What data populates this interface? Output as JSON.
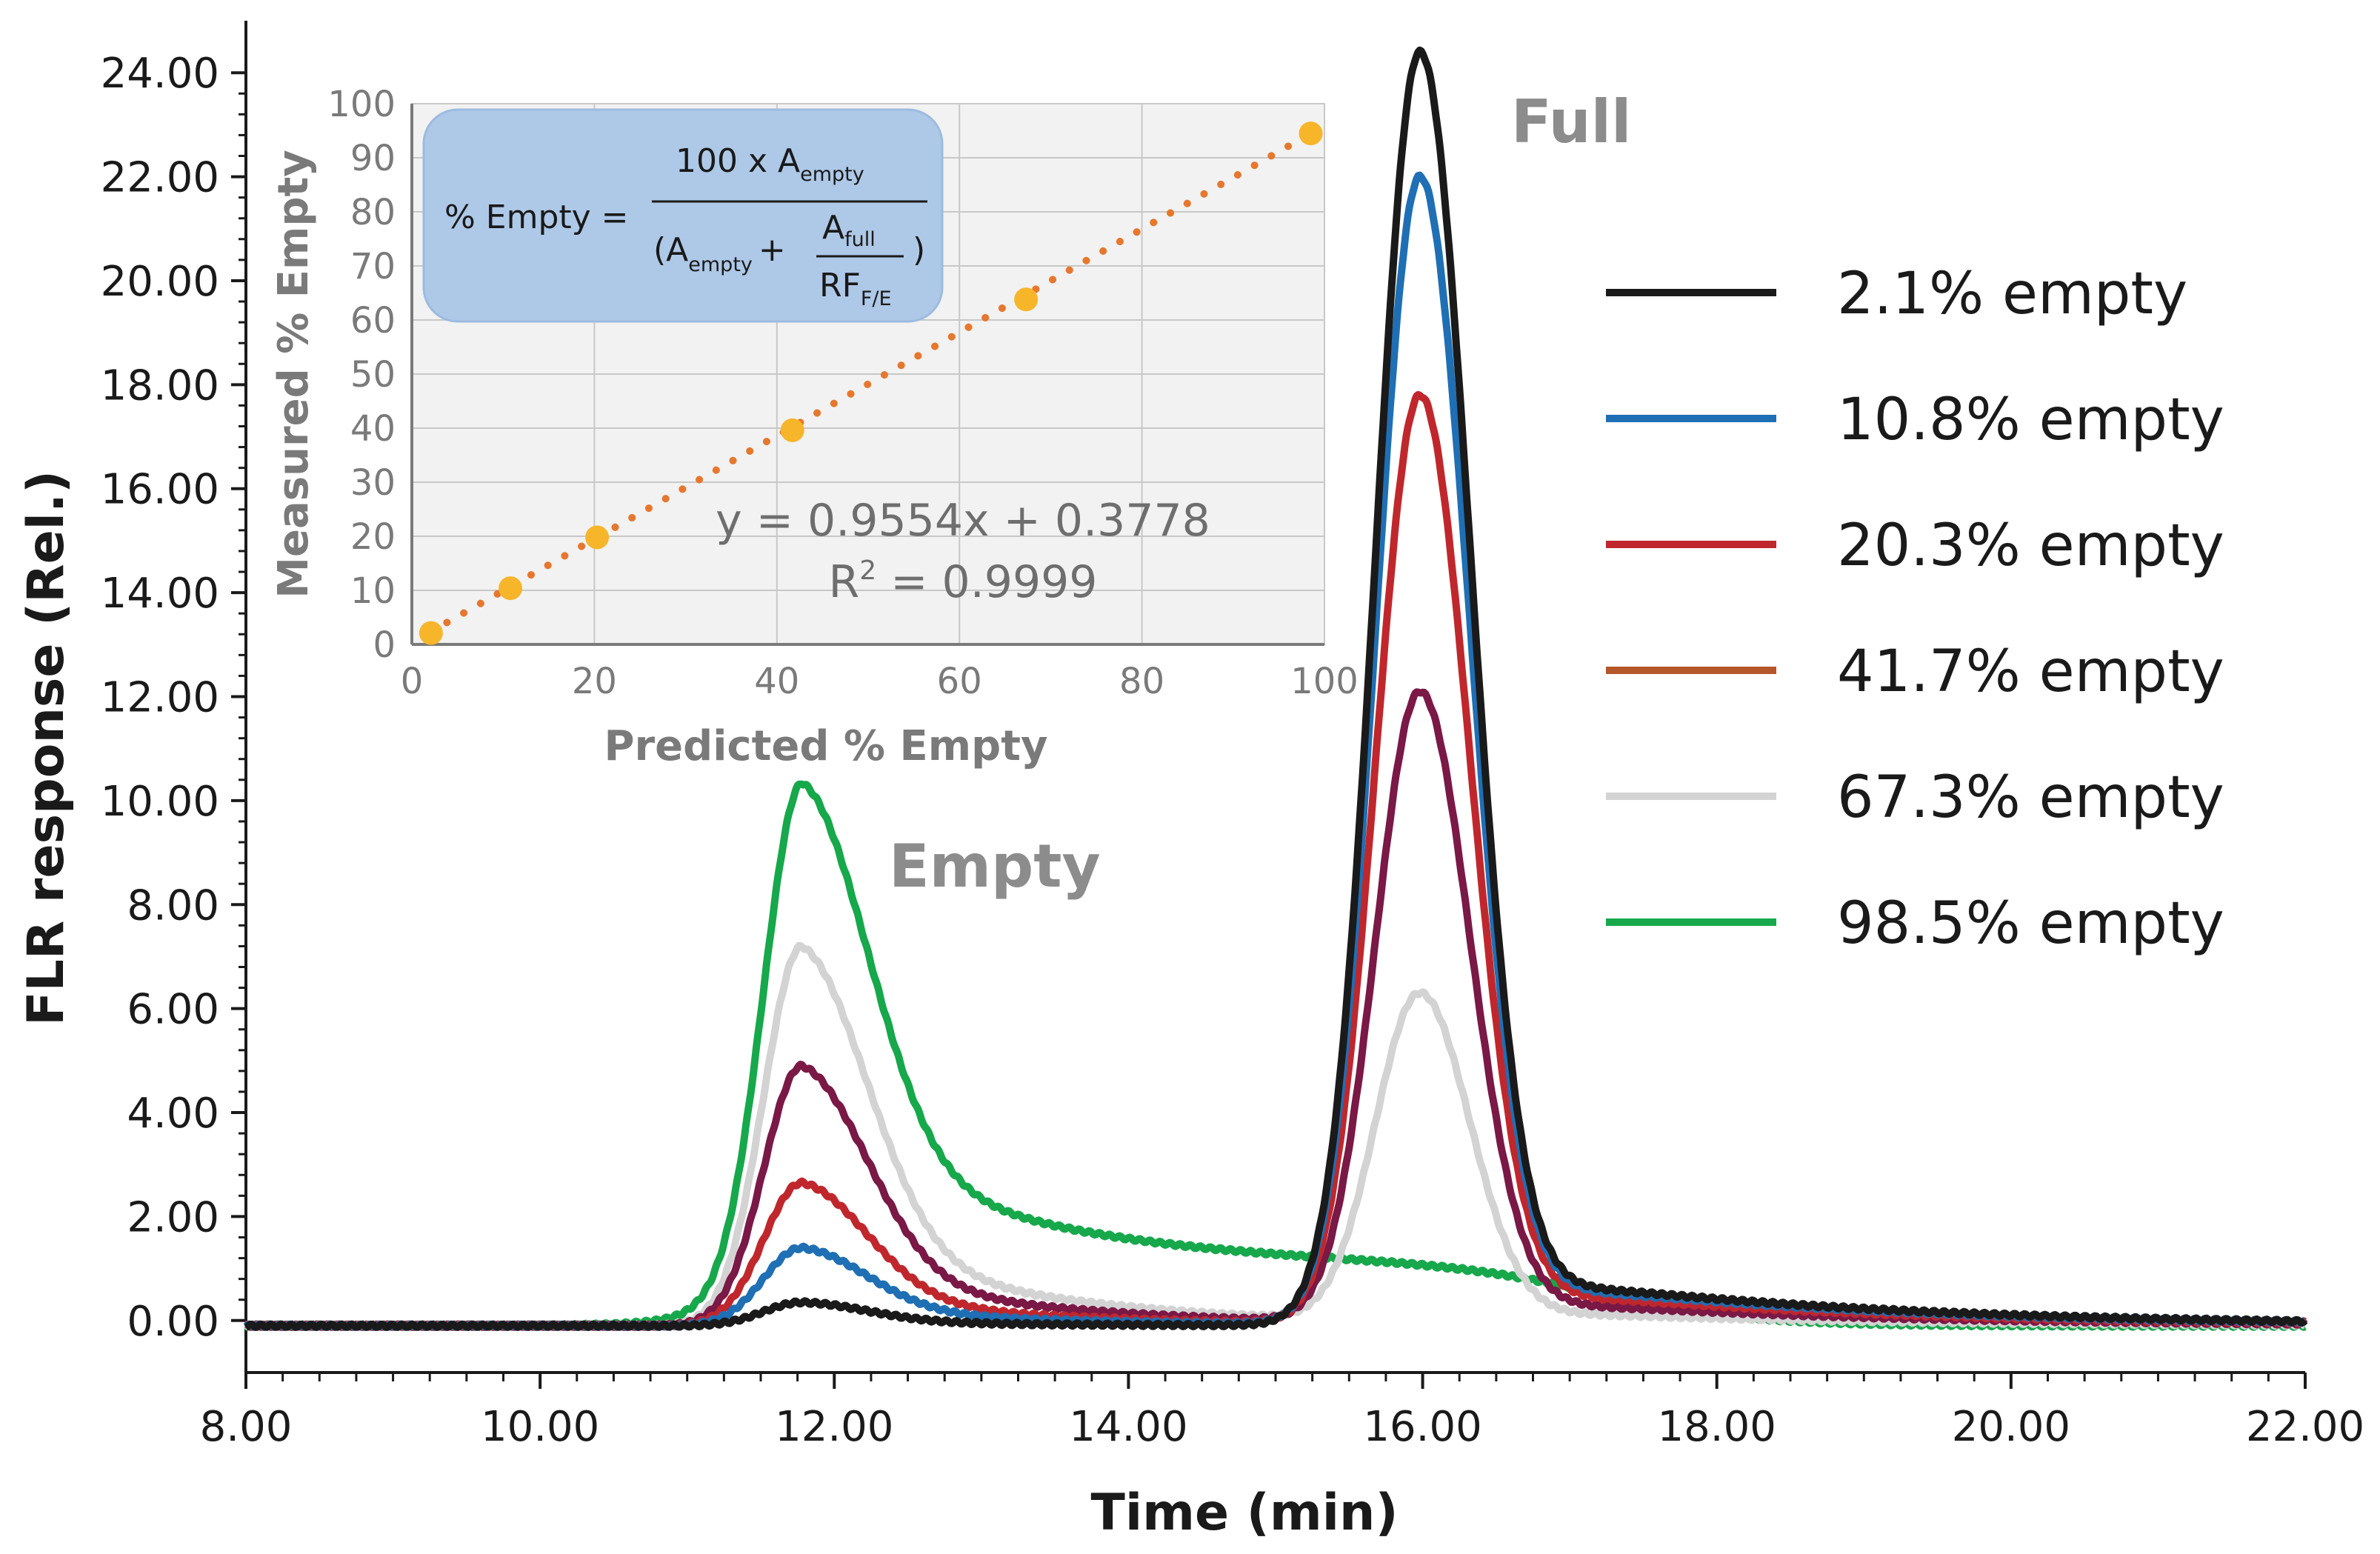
{
  "chart_data": [
    {
      "type": "line",
      "title": "",
      "xlabel": "Time (min)",
      "ylabel": "FLR response (Rel.)",
      "xlim": [
        8,
        22
      ],
      "ylim": [
        -1,
        25
      ],
      "x_ticks": [
        8,
        10,
        12,
        14,
        16,
        18,
        20,
        22
      ],
      "x_tick_labels": [
        "8.00",
        "10.00",
        "12.00",
        "14.00",
        "16.00",
        "18.00",
        "20.00",
        "22.00"
      ],
      "y_ticks": [
        0,
        2,
        4,
        6,
        8,
        10,
        12,
        14,
        16,
        18,
        20,
        22,
        24
      ],
      "y_tick_labels": [
        "0.00",
        "2.00",
        "4.00",
        "6.00",
        "8.00",
        "10.00",
        "12.00",
        "14.00",
        "16.00",
        "18.00",
        "20.00",
        "22.00",
        "24.00"
      ],
      "annotations": [
        {
          "text": "Empty",
          "x": 12.3,
          "y": 8.8
        },
        {
          "text": "Full",
          "x": 16.6,
          "y": 23.2
        }
      ],
      "legend_position": "right",
      "series": [
        {
          "name": "2.1% empty",
          "color": "#1a1a1a",
          "empty_peak": 0.45,
          "empty_tail": 0.1,
          "full_peak": 24.4,
          "plateau": 0.0
        },
        {
          "name": "10.8% empty",
          "color": "#1f6fb4",
          "empty_peak": 1.5,
          "empty_tail": 0.4,
          "full_peak": 22.0,
          "plateau": 0.0
        },
        {
          "name": "20.3% empty",
          "color": "#c0272d",
          "empty_peak": 2.75,
          "empty_tail": 0.7,
          "full_peak": 17.8,
          "plateau": 0.0
        },
        {
          "name": "41.7% empty",
          "color": "#7a1846",
          "empty_peak": 5.0,
          "empty_tail": 1.3,
          "full_peak": 12.1,
          "plateau": 0.0
        },
        {
          "name": "67.3% empty",
          "color": "#d3d3d3",
          "empty_peak": 7.3,
          "empty_tail": 2.0,
          "full_peak": 6.3,
          "plateau": 0.0
        },
        {
          "name": "98.5% empty",
          "color": "#16a84b",
          "empty_peak": 9.5,
          "empty_tail": 2.9,
          "full_peak": 0.0,
          "plateau": 1.15
        }
      ],
      "legend_swatch_colors": [
        "#1a1a1a",
        "#1f6fb4",
        "#c0272d",
        "#b5572b",
        "#d3d3d3",
        "#16a84b"
      ]
    },
    {
      "type": "scatter",
      "title": "",
      "xlabel": "Predicted % Empty",
      "ylabel": "Measured % Empty",
      "xlim": [
        0,
        100
      ],
      "ylim": [
        0,
        100
      ],
      "x_ticks": [
        0,
        20,
        40,
        60,
        80,
        100
      ],
      "y_ticks": [
        0,
        10,
        20,
        30,
        40,
        50,
        60,
        70,
        80,
        90,
        100
      ],
      "grid": true,
      "points": {
        "x": [
          2.1,
          10.8,
          20.3,
          41.7,
          67.3,
          98.5
        ],
        "y": [
          2.1,
          10.4,
          19.8,
          39.6,
          63.8,
          94.5
        ]
      },
      "point_color": "#f7b52a",
      "fit": {
        "slope": 0.9554,
        "intercept": 0.3778,
        "color": "#e6772e"
      },
      "equation": "y = 0.9554x + 0.3778",
      "r_squared_label": "R",
      "r_squared_exp": "2",
      "r_squared_value": " = 0.9999",
      "formula": {
        "lhs": "% Empty =",
        "numerator": "100 x A",
        "numerator_sub": "empty",
        "denominator_open": "(A",
        "denominator_sub": "empty",
        "plus": "+",
        "frac_top": "A",
        "frac_top_sub": "full",
        "frac_bottom": "RF",
        "frac_bottom_sub": "F/E",
        "close": ")"
      }
    }
  ]
}
